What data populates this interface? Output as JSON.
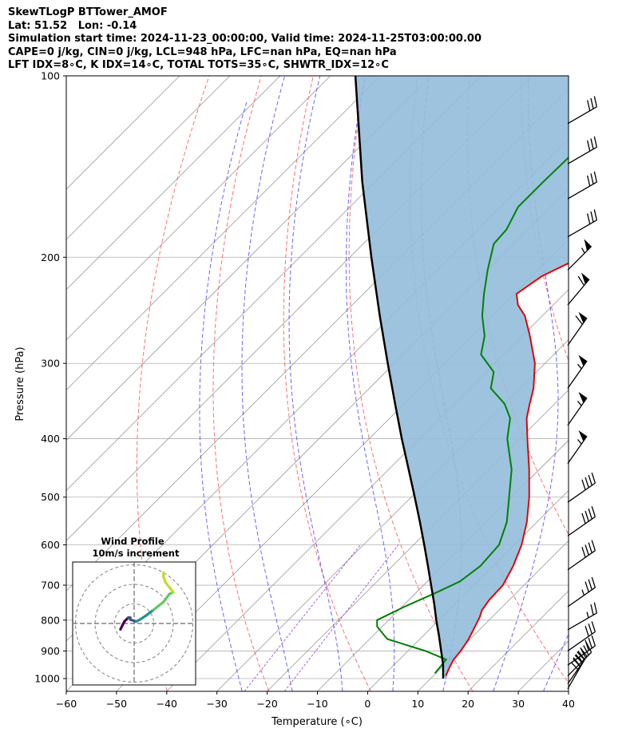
{
  "header": {
    "title": "SkewTLogP BTTower_AMOF",
    "location": "Lat: 51.52   Lon: -0.14",
    "times": "Simulation start time: 2024-11-23_00:00:00, Valid time: 2024-11-25T03:00:00.00",
    "params": "CAPE=0 j/kg, CIN=0 j/kg, LCL=948 hPa, LFC=nan hPa, EQ=nan hPa",
    "indices": "LFT IDX=8∘C, K IDX=14∘C, TOTAL TOTS=35∘C, SHWTR_IDX=12∘C"
  },
  "chart_data": {
    "type": "line",
    "xlabel": "Temperature (∘C)",
    "ylabel": "Pressure (hPa)",
    "xlim": [
      -60,
      40
    ],
    "ylim": [
      1050,
      100
    ],
    "y_scale": "log",
    "x_ticks": [
      "−60",
      "−50",
      "−40",
      "−30",
      "−20",
      "−10",
      "0",
      "10",
      "20",
      "30",
      "40"
    ],
    "y_ticks": [
      "100",
      "200",
      "300",
      "400",
      "500",
      "600",
      "700",
      "800",
      "900",
      "1000"
    ],
    "grid": true,
    "skew_deg": 45,
    "colors": {
      "temperature": "#e60000",
      "dewpoint": "#008000",
      "parcel": "#000000",
      "shading": "#94bcda"
    },
    "series": [
      {
        "id": "temperature",
        "pressure": [
          990,
          960,
          930,
          900,
          860,
          820,
          790,
          770,
          740,
          700,
          650,
          600,
          550,
          500,
          450,
          400,
          370,
          350,
          330,
          300,
          270,
          250,
          240,
          230,
          215,
          200,
          190,
          175,
          160,
          140,
          125,
          110,
          100
        ],
        "temperature": [
          12.5,
          11.6,
          10.8,
          10.5,
          9.7,
          8.5,
          7.5,
          6.6,
          6.0,
          5.8,
          4.0,
          1.5,
          -2.0,
          -6.5,
          -12.0,
          -18.5,
          -22.7,
          -25.0,
          -27.3,
          -32.0,
          -38.5,
          -43.5,
          -47.0,
          -49.5,
          -48.0,
          -44.0,
          -40.0,
          -34.3,
          -34.0,
          -37.5,
          -40.5,
          -44.5,
          -47.0
        ]
      },
      {
        "id": "dewpoint",
        "pressure": [
          980,
          950,
          930,
          900,
          860,
          820,
          800,
          760,
          720,
          690,
          650,
          600,
          550,
          500,
          450,
          400,
          370,
          350,
          330,
          310,
          290,
          270,
          250,
          230,
          210,
          190,
          180,
          165,
          150,
          130,
          115,
          105,
          100
        ],
        "temperature": [
          9.8,
          9.5,
          9.3,
          3.5,
          -6.5,
          -11.0,
          -12.3,
          -9.5,
          -6.0,
          -3.5,
          -2.5,
          -3.0,
          -6.0,
          -10.5,
          -15.5,
          -22.5,
          -26.0,
          -30.0,
          -35.8,
          -38.5,
          -44.5,
          -47.5,
          -52.0,
          -56.0,
          -60.0,
          -64.0,
          -64.3,
          -66.5,
          -66.5,
          -66.2,
          -66.5,
          -66.2,
          -66.0
        ]
      },
      {
        "id": "parcel",
        "pressure": [
          1000,
          948,
          900,
          850,
          800,
          750,
          700,
          650,
          600,
          550,
          500,
          450,
          400,
          350,
          300,
          250,
          200,
          150,
          100
        ],
        "temperature": [
          12.5,
          9.7,
          6.6,
          3.2,
          -0.5,
          -4.3,
          -8.5,
          -13.0,
          -17.9,
          -23.3,
          -29.3,
          -36.0,
          -43.5,
          -51.8,
          -61.3,
          -72.4,
          -85.7,
          -102.5,
          -125.0
        ]
      }
    ],
    "wind_barbs": [
      {
        "pressure": 120,
        "speed_kt": 30,
        "direction_deg": 240
      },
      {
        "pressure": 140,
        "speed_kt": 30,
        "direction_deg": 240
      },
      {
        "pressure": 160,
        "speed_kt": 30,
        "direction_deg": 240
      },
      {
        "pressure": 185,
        "speed_kt": 30,
        "direction_deg": 240
      },
      {
        "pressure": 210,
        "speed_kt": 55,
        "direction_deg": 225
      },
      {
        "pressure": 240,
        "speed_kt": 60,
        "direction_deg": 220
      },
      {
        "pressure": 280,
        "speed_kt": 60,
        "direction_deg": 215
      },
      {
        "pressure": 330,
        "speed_kt": 55,
        "direction_deg": 215
      },
      {
        "pressure": 380,
        "speed_kt": 55,
        "direction_deg": 215
      },
      {
        "pressure": 440,
        "speed_kt": 55,
        "direction_deg": 215
      },
      {
        "pressure": 510,
        "speed_kt": 40,
        "direction_deg": 235
      },
      {
        "pressure": 580,
        "speed_kt": 40,
        "direction_deg": 235
      },
      {
        "pressure": 660,
        "speed_kt": 40,
        "direction_deg": 235
      },
      {
        "pressure": 760,
        "speed_kt": 35,
        "direction_deg": 235
      },
      {
        "pressure": 830,
        "speed_kt": 25,
        "direction_deg": 240
      },
      {
        "pressure": 900,
        "speed_kt": 30,
        "direction_deg": 235
      },
      {
        "pressure": 950,
        "speed_kt": 30,
        "direction_deg": 235
      },
      {
        "pressure": 990,
        "speed_kt": 35,
        "direction_deg": 225
      },
      {
        "pressure": 1020,
        "speed_kt": 40,
        "direction_deg": 215
      },
      {
        "pressure": 1040,
        "speed_kt": 40,
        "direction_deg": 210
      }
    ],
    "hodograph": {
      "title": "Wind Profile",
      "subtitle": "10m/s increment",
      "rings_ms": [
        10,
        20,
        30
      ],
      "u": [
        -7,
        -6,
        -5,
        -4,
        -3,
        -2,
        -2,
        1,
        3,
        6,
        10,
        15,
        18,
        20,
        16,
        15,
        15
      ],
      "v": [
        -3,
        -1,
        1,
        2,
        3,
        3,
        2,
        1,
        2,
        4,
        7,
        11,
        15,
        16,
        21,
        24,
        26
      ],
      "colormap": [
        "#440154",
        "#3b528b",
        "#21918c",
        "#5ec962",
        "#bddf26"
      ]
    }
  }
}
